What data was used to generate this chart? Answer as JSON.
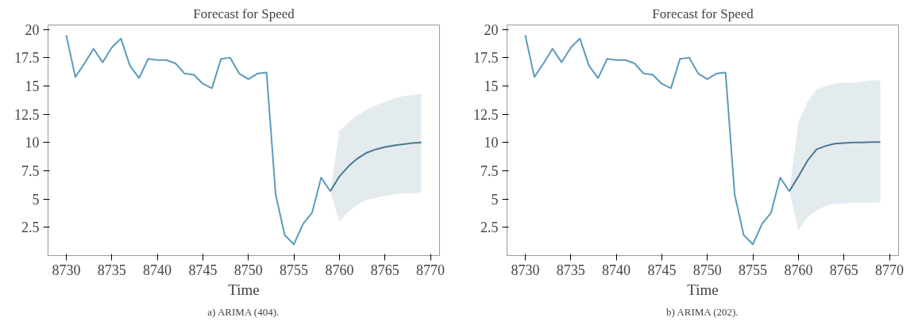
{
  "chart_data": [
    {
      "type": "line",
      "title": "Forecast for Speed",
      "xlabel": "Time",
      "annotations": [
        "a) ARIMA (404)."
      ],
      "xlim": [
        8728,
        8771
      ],
      "xticks": [
        8730,
        8735,
        8740,
        8745,
        8750,
        8755,
        8760,
        8765,
        8770
      ],
      "ylim": [
        0,
        20.4
      ],
      "yticks": [
        2.5,
        5,
        7.5,
        10,
        12.5,
        15,
        17.5,
        20
      ],
      "grid": false,
      "series": [
        {
          "color": "#5b9bbd",
          "x": [
            8730,
            8731,
            8732,
            8733,
            8734,
            8735,
            8736,
            8737,
            8738,
            8739,
            8740,
            8741,
            8742,
            8743,
            8744,
            8745,
            8746,
            8747,
            8748,
            8749,
            8750,
            8751,
            8752,
            8753,
            8754,
            8755,
            8756,
            8757,
            8758,
            8759
          ],
          "values": [
            19.5,
            15.8,
            17.0,
            18.3,
            17.1,
            18.4,
            19.2,
            16.8,
            15.7,
            17.4,
            17.3,
            17.3,
            17.0,
            16.1,
            16.0,
            15.2,
            14.8,
            17.4,
            17.5,
            16.1,
            15.6,
            16.1,
            16.2,
            5.4,
            1.8,
            1.0,
            2.8,
            3.8,
            6.9,
            5.7
          ]
        },
        {
          "color": "#4a7892",
          "x": [
            8759,
            8760,
            8761,
            8762,
            8763,
            8764,
            8765,
            8766,
            8767,
            8768,
            8769
          ],
          "values": [
            5.7,
            7.0,
            7.9,
            8.6,
            9.1,
            9.4,
            9.6,
            9.75,
            9.85,
            9.95,
            10.0
          ],
          "lower": [
            5.7,
            3.0,
            3.9,
            4.5,
            4.9,
            5.1,
            5.3,
            5.4,
            5.5,
            5.5,
            5.6
          ],
          "upper": [
            5.7,
            11.0,
            11.8,
            12.4,
            12.9,
            13.3,
            13.6,
            13.9,
            14.1,
            14.2,
            14.3
          ]
        }
      ]
    },
    {
      "type": "line",
      "title": "Forecast for Speed",
      "xlabel": "Time",
      "annotations": [
        "b) ARIMA (202)."
      ],
      "xlim": [
        8728,
        8771
      ],
      "xticks": [
        8730,
        8735,
        8740,
        8745,
        8750,
        8755,
        8760,
        8765,
        8770
      ],
      "ylim": [
        0,
        20.4
      ],
      "yticks": [
        2.5,
        5,
        7.5,
        10,
        12.5,
        15,
        17.5,
        20
      ],
      "grid": false,
      "series": [
        {
          "color": "#5b9bbd",
          "x": [
            8730,
            8731,
            8732,
            8733,
            8734,
            8735,
            8736,
            8737,
            8738,
            8739,
            8740,
            8741,
            8742,
            8743,
            8744,
            8745,
            8746,
            8747,
            8748,
            8749,
            8750,
            8751,
            8752,
            8753,
            8754,
            8755,
            8756,
            8757,
            8758,
            8759
          ],
          "values": [
            19.5,
            15.8,
            17.0,
            18.3,
            17.1,
            18.4,
            19.2,
            16.8,
            15.7,
            17.4,
            17.3,
            17.3,
            17.0,
            16.1,
            16.0,
            15.2,
            14.8,
            17.4,
            17.5,
            16.1,
            15.6,
            16.1,
            16.2,
            5.4,
            1.8,
            1.0,
            2.8,
            3.8,
            6.9,
            5.7
          ]
        },
        {
          "color": "#4a7892",
          "x": [
            8759,
            8760,
            8761,
            8762,
            8763,
            8764,
            8765,
            8766,
            8767,
            8768,
            8769
          ],
          "values": [
            5.7,
            7.0,
            8.4,
            9.4,
            9.7,
            9.9,
            9.95,
            10.0,
            10.0,
            10.05,
            10.05
          ],
          "lower": [
            5.7,
            2.2,
            3.4,
            4.0,
            4.4,
            4.6,
            4.6,
            4.7,
            4.7,
            4.7,
            4.7
          ],
          "upper": [
            5.7,
            11.8,
            13.6,
            14.7,
            15.0,
            15.2,
            15.3,
            15.3,
            15.4,
            15.5,
            15.5
          ]
        }
      ]
    }
  ]
}
